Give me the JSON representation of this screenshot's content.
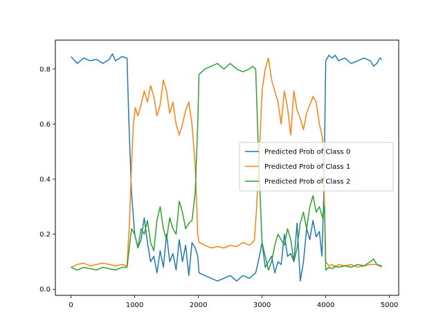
{
  "chart_data": {
    "type": "line",
    "title": "",
    "xlabel": "",
    "ylabel": "",
    "xlim": [
      -245,
      5145
    ],
    "ylim": [
      -0.022,
      0.905
    ],
    "xticks": [
      0,
      1000,
      2000,
      3000,
      4000,
      5000
    ],
    "yticks": [
      0.0,
      0.2,
      0.4,
      0.6,
      0.8
    ],
    "xtick_labels": [
      "0",
      "1000",
      "2000",
      "3000",
      "4000",
      "5000"
    ],
    "ytick_labels": [
      "0.0",
      "0.2",
      "0.4",
      "0.6",
      "0.8"
    ],
    "grid": false,
    "legend_position": "center-right",
    "series": [
      {
        "name": "Predicted Prob of Class 0",
        "color": "#1f77b4",
        "x": [
          0,
          100,
          200,
          300,
          400,
          500,
          600,
          650,
          700,
          800,
          880,
          910,
          950,
          1000,
          1050,
          1100,
          1150,
          1200,
          1250,
          1300,
          1350,
          1400,
          1450,
          1500,
          1550,
          1600,
          1650,
          1700,
          1750,
          1800,
          1850,
          1900,
          1950,
          1990,
          2010,
          2100,
          2200,
          2300,
          2400,
          2500,
          2600,
          2700,
          2800,
          2850,
          2900,
          2950,
          3000,
          3050,
          3100,
          3150,
          3200,
          3250,
          3300,
          3350,
          3400,
          3450,
          3500,
          3550,
          3600,
          3650,
          3700,
          3750,
          3800,
          3850,
          3900,
          3940,
          3970,
          4000,
          4050,
          4100,
          4150,
          4200,
          4300,
          4400,
          4500,
          4600,
          4700,
          4750,
          4800,
          4850,
          4880
        ],
        "y": [
          0.845,
          0.82,
          0.84,
          0.83,
          0.835,
          0.82,
          0.835,
          0.855,
          0.83,
          0.845,
          0.84,
          0.6,
          0.35,
          0.2,
          0.15,
          0.18,
          0.26,
          0.17,
          0.1,
          0.12,
          0.06,
          0.14,
          0.08,
          0.2,
          0.1,
          0.13,
          0.07,
          0.18,
          0.1,
          0.16,
          0.05,
          0.17,
          0.15,
          0.12,
          0.06,
          0.05,
          0.04,
          0.03,
          0.04,
          0.05,
          0.03,
          0.05,
          0.04,
          0.05,
          0.06,
          0.11,
          0.17,
          0.08,
          0.1,
          0.12,
          0.06,
          0.1,
          0.09,
          0.2,
          0.12,
          0.13,
          0.1,
          0.24,
          0.03,
          0.1,
          0.22,
          0.18,
          0.25,
          0.19,
          0.21,
          0.12,
          0.35,
          0.83,
          0.85,
          0.84,
          0.85,
          0.83,
          0.84,
          0.82,
          0.83,
          0.84,
          0.83,
          0.81,
          0.82,
          0.84,
          0.835
        ]
      },
      {
        "name": "Predicted Prob of Class 1",
        "color": "#ff7f0e",
        "x": [
          0,
          100,
          200,
          300,
          400,
          500,
          600,
          700,
          800,
          880,
          920,
          950,
          980,
          1010,
          1050,
          1100,
          1150,
          1200,
          1250,
          1300,
          1350,
          1400,
          1450,
          1500,
          1550,
          1600,
          1650,
          1700,
          1750,
          1800,
          1850,
          1900,
          1950,
          1990,
          2010,
          2100,
          2200,
          2300,
          2400,
          2500,
          2600,
          2700,
          2800,
          2850,
          2880,
          2910,
          2950,
          3000,
          3050,
          3100,
          3150,
          3200,
          3250,
          3300,
          3350,
          3400,
          3450,
          3500,
          3550,
          3600,
          3650,
          3700,
          3750,
          3800,
          3850,
          3900,
          3950,
          3980,
          4000,
          4050,
          4100,
          4150,
          4200,
          4300,
          4400,
          4500,
          4600,
          4700,
          4800,
          4880
        ],
        "y": [
          0.08,
          0.09,
          0.095,
          0.085,
          0.09,
          0.095,
          0.09,
          0.085,
          0.09,
          0.085,
          0.25,
          0.45,
          0.6,
          0.66,
          0.63,
          0.67,
          0.72,
          0.68,
          0.74,
          0.7,
          0.63,
          0.67,
          0.76,
          0.72,
          0.64,
          0.68,
          0.6,
          0.56,
          0.6,
          0.65,
          0.68,
          0.6,
          0.45,
          0.2,
          0.17,
          0.16,
          0.15,
          0.155,
          0.15,
          0.16,
          0.155,
          0.17,
          0.16,
          0.17,
          0.18,
          0.28,
          0.45,
          0.72,
          0.8,
          0.84,
          0.76,
          0.72,
          0.68,
          0.6,
          0.72,
          0.66,
          0.56,
          0.72,
          0.65,
          0.62,
          0.58,
          0.64,
          0.67,
          0.7,
          0.68,
          0.6,
          0.55,
          0.3,
          0.1,
          0.085,
          0.09,
          0.08,
          0.09,
          0.085,
          0.09,
          0.08,
          0.085,
          0.09,
          0.09,
          0.08
        ]
      },
      {
        "name": "Predicted Prob of Class 2",
        "color": "#2ca02c",
        "x": [
          0,
          100,
          200,
          300,
          400,
          500,
          600,
          700,
          800,
          880,
          910,
          950,
          1000,
          1050,
          1100,
          1150,
          1200,
          1250,
          1300,
          1350,
          1400,
          1450,
          1500,
          1550,
          1600,
          1650,
          1700,
          1750,
          1800,
          1850,
          1900,
          1950,
          1990,
          2010,
          2100,
          2200,
          2300,
          2400,
          2500,
          2600,
          2700,
          2800,
          2850,
          2900,
          2950,
          3000,
          3050,
          3100,
          3150,
          3200,
          3250,
          3300,
          3350,
          3400,
          3450,
          3500,
          3550,
          3600,
          3650,
          3700,
          3750,
          3800,
          3850,
          3900,
          3950,
          3980,
          4000,
          4050,
          4100,
          4150,
          4200,
          4300,
          4400,
          4500,
          4600,
          4700,
          4750,
          4800,
          4880
        ],
        "y": [
          0.08,
          0.07,
          0.08,
          0.075,
          0.07,
          0.08,
          0.075,
          0.07,
          0.08,
          0.08,
          0.14,
          0.22,
          0.2,
          0.15,
          0.22,
          0.2,
          0.25,
          0.17,
          0.14,
          0.25,
          0.3,
          0.22,
          0.18,
          0.26,
          0.22,
          0.2,
          0.32,
          0.28,
          0.22,
          0.24,
          0.25,
          0.35,
          0.6,
          0.78,
          0.8,
          0.81,
          0.82,
          0.8,
          0.82,
          0.8,
          0.79,
          0.8,
          0.81,
          0.8,
          0.45,
          0.17,
          0.12,
          0.07,
          0.1,
          0.16,
          0.2,
          0.18,
          0.16,
          0.22,
          0.18,
          0.1,
          0.15,
          0.24,
          0.28,
          0.22,
          0.3,
          0.34,
          0.28,
          0.3,
          0.26,
          0.3,
          0.07,
          0.08,
          0.075,
          0.085,
          0.08,
          0.085,
          0.08,
          0.09,
          0.085,
          0.1,
          0.11,
          0.09,
          0.085
        ]
      }
    ]
  }
}
